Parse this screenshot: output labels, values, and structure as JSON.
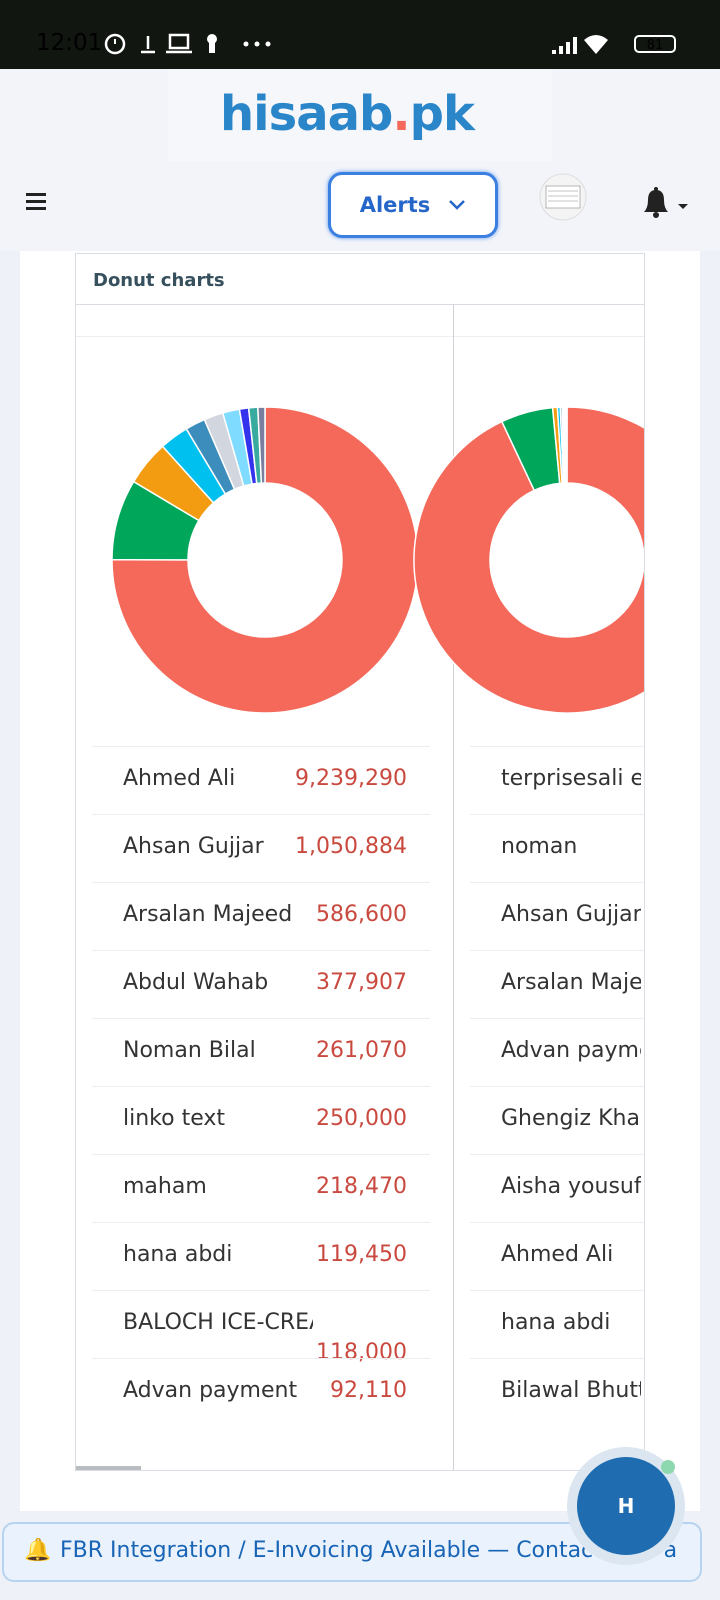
{
  "status_bar": {
    "time": "12:01",
    "battery": "81"
  },
  "header": {
    "logo": [
      "hisaab",
      ".",
      "pk"
    ],
    "alerts_button": "Alerts"
  },
  "card": {
    "title": "Donut charts",
    "charts": [
      {
        "type": "donut",
        "categories": [
          "Ahmed Ali",
          "Ahsan Gujjar",
          "Arsalan Majeed",
          "Abdul Wahab",
          "Noman Bilal",
          "linko text",
          "maham",
          "hana abdi",
          "BALOCH ICE-CREAM",
          "Advan payment"
        ],
        "values": [
          9239290,
          1050884,
          586600,
          377907,
          261070,
          250000,
          218470,
          119450,
          118000,
          92110
        ],
        "value_labels": [
          "9,239,290",
          "1,050,884",
          "586,600",
          "377,907",
          "261,070",
          "250,000",
          "218,470",
          "119,450",
          "118,000",
          "92,110"
        ],
        "colors": [
          "#f4695a",
          "#00a65a",
          "#f39c12",
          "#00c0ef",
          "#3c8dbc",
          "#d2d6de",
          "#7fdbff",
          "#3333ee",
          "#39aaa0",
          "#7a7fa0"
        ]
      },
      {
        "type": "donut",
        "categories": [
          "terprisesali er",
          "noman",
          "Ahsan Gujjar",
          "Arsalan Maje",
          "Advan payme",
          "Ghengiz Khar",
          "Aisha yousuf",
          "Ahmed Ali",
          "hana abdi",
          "Bilawal Bhutt"
        ],
        "values": [
          93,
          5.5,
          0.5,
          0.3,
          0.2,
          0.15,
          0.1,
          0.1,
          0.1,
          0.05
        ],
        "colors": [
          "#f4695a",
          "#00a65a",
          "#f39c12",
          "#00c0ef",
          "#3c8dbc",
          "#d2d6de",
          "#7fdbff",
          "#3333ee",
          "#39aaa0",
          "#7a7fa0"
        ]
      }
    ]
  },
  "banner": "FBR Integration / E-Invoicing Available — Contact Now a",
  "fab": "H"
}
